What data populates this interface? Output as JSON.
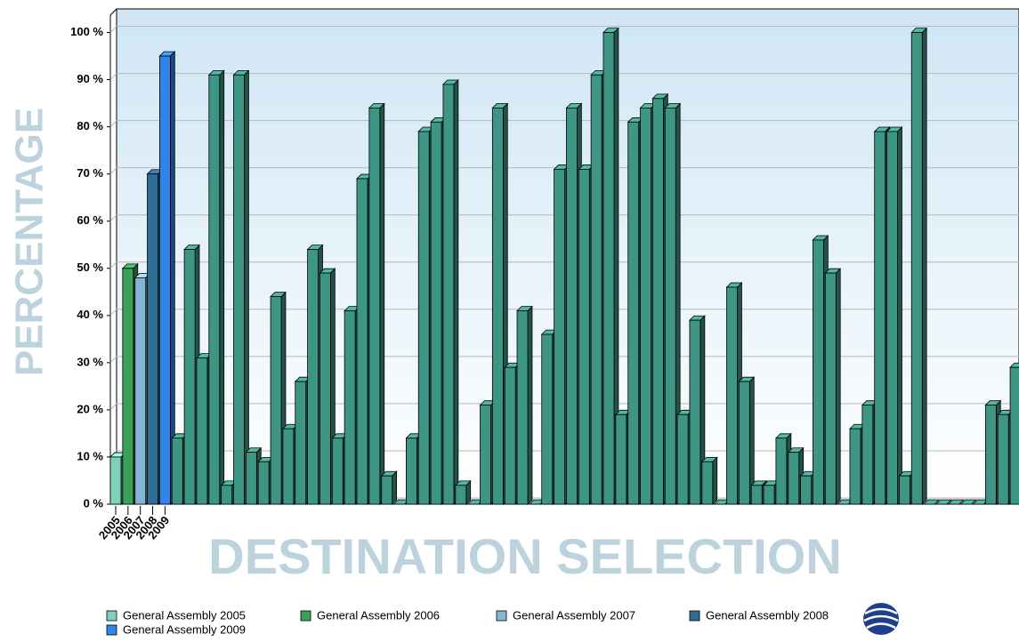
{
  "chart_data": {
    "type": "bar",
    "y_label": "PERCENTAGE",
    "x_label": "DESTINATION SELECTION",
    "categories": [
      "2005",
      "2006",
      "2007",
      "2008",
      "2009",
      null,
      null,
      null,
      null,
      null,
      null,
      null,
      null,
      null,
      null,
      null,
      null,
      null,
      null,
      null,
      null,
      null,
      null,
      null,
      null,
      null,
      null,
      null,
      null,
      null,
      null,
      null,
      null,
      null,
      null,
      null,
      null,
      null,
      null,
      null,
      null,
      null,
      null,
      null,
      null,
      null,
      null,
      null,
      null,
      null,
      null,
      null,
      null,
      null,
      null,
      null,
      null,
      null,
      null,
      null,
      null,
      null,
      null,
      null,
      null,
      null,
      null,
      null,
      null,
      null,
      null,
      null,
      null,
      null
    ],
    "values": [
      10,
      50,
      48,
      70,
      95,
      14,
      54,
      31,
      91,
      4,
      91,
      11,
      9,
      44,
      16,
      26,
      54,
      49,
      14,
      41,
      69,
      84,
      6,
      0,
      14,
      79,
      81,
      89,
      4,
      0,
      21,
      84,
      29,
      41,
      0,
      36,
      71,
      84,
      71,
      91,
      100,
      19,
      81,
      84,
      86,
      84,
      19,
      39,
      9,
      0,
      46,
      26,
      4,
      4,
      14,
      11,
      6,
      56,
      49,
      0,
      16,
      21,
      79,
      79,
      6,
      100,
      0,
      0,
      0,
      0,
      0,
      21,
      19,
      29
    ],
    "colors": [
      "#7fd1bd",
      "#3aa05a",
      "#86b4d4",
      "#2e6d94",
      "#2f86e8"
    ],
    "color": "#3f9583",
    "legend": [
      "General Assembly 2005",
      "General Assembly 2006",
      "General Assembly 2007",
      "General Assembly 2008",
      "General Assembly 2009"
    ],
    "ylim": [
      0,
      105
    ],
    "yticks": [
      {
        "value": 0,
        "label": "0 %"
      },
      {
        "value": 10,
        "label": "10 %"
      },
      {
        "value": 20,
        "label": "20 %"
      },
      {
        "value": 30,
        "label": "30 %"
      },
      {
        "value": 40,
        "label": "40 %"
      },
      {
        "value": 50,
        "label": "50 %"
      },
      {
        "value": 60,
        "label": "60 %"
      },
      {
        "value": 70,
        "label": "70 %"
      },
      {
        "value": 80,
        "label": "80 %"
      },
      {
        "value": 90,
        "label": "90 %"
      },
      {
        "value": 100,
        "label": "100 %"
      }
    ],
    "grid": true
  }
}
